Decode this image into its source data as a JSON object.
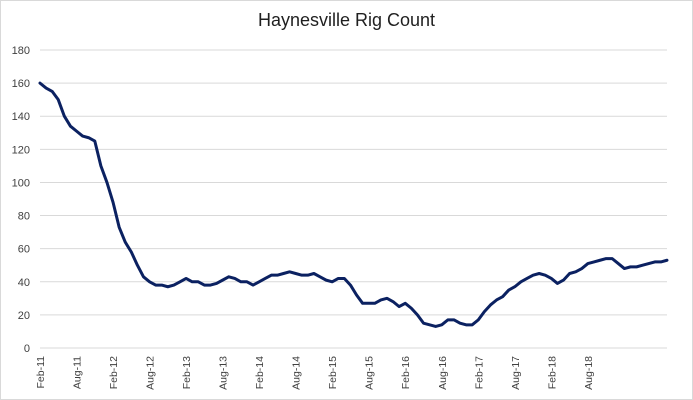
{
  "chart_data": {
    "type": "line",
    "title": "Haynesville Rig Count",
    "xlabel": "",
    "ylabel": "",
    "ylim": [
      0,
      180
    ],
    "yticks": [
      0,
      20,
      40,
      60,
      80,
      100,
      120,
      140,
      160,
      180
    ],
    "xtick_labels": [
      "Feb-11",
      "Aug-11",
      "Feb-12",
      "Aug-12",
      "Feb-13",
      "Aug-13",
      "Feb-14",
      "Aug-14",
      "Feb-15",
      "Aug-15",
      "Feb-16",
      "Aug-16",
      "Feb-17",
      "Aug-17",
      "Feb-18",
      "Aug-18"
    ],
    "grid": "horizontal",
    "line_color": "#0b2161",
    "series": [
      {
        "values_by_month": [
          160,
          157,
          155,
          150,
          140,
          134,
          131,
          128,
          127,
          125,
          110,
          100,
          88,
          73,
          64,
          58,
          50,
          43,
          40,
          38,
          38,
          37,
          38,
          40,
          42,
          40,
          40,
          38,
          38,
          39,
          41,
          43,
          42,
          40,
          40,
          38,
          40,
          42,
          44,
          44,
          45,
          46,
          45,
          44,
          44,
          45,
          43,
          41,
          40,
          42,
          42,
          38,
          32,
          27,
          27,
          27,
          29,
          30,
          28,
          25,
          27,
          24,
          20,
          15,
          14,
          13,
          14,
          17,
          17,
          15,
          14,
          14,
          17,
          22,
          26,
          29,
          31,
          35,
          37,
          40,
          42,
          44,
          45,
          44,
          42,
          39,
          41,
          45,
          46,
          48,
          51,
          52,
          53,
          54,
          54,
          51,
          48,
          49,
          49,
          50,
          51,
          52,
          52,
          53
        ]
      }
    ]
  }
}
